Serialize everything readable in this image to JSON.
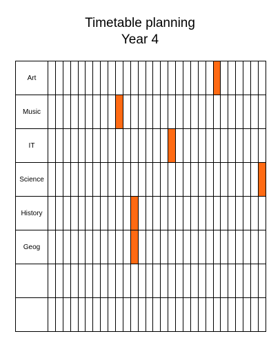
{
  "title": {
    "line1": "Timetable planning",
    "line2": "Year 4"
  },
  "colors": {
    "highlight": "#ff6a13",
    "grid_line": "#000000"
  },
  "timetable": {
    "slot_count": 29,
    "rows": [
      {
        "subject": "Art",
        "highlighted_slot": 22
      },
      {
        "subject": "Music",
        "highlighted_slot": 9
      },
      {
        "subject": "IT",
        "highlighted_slot": 16
      },
      {
        "subject": "Science",
        "highlighted_slot": 28
      },
      {
        "subject": "History",
        "highlighted_slot": 11
      },
      {
        "subject": "Geog",
        "highlighted_slot": 11
      },
      {
        "subject": "",
        "highlighted_slot": null
      },
      {
        "subject": "",
        "highlighted_slot": null
      }
    ]
  }
}
